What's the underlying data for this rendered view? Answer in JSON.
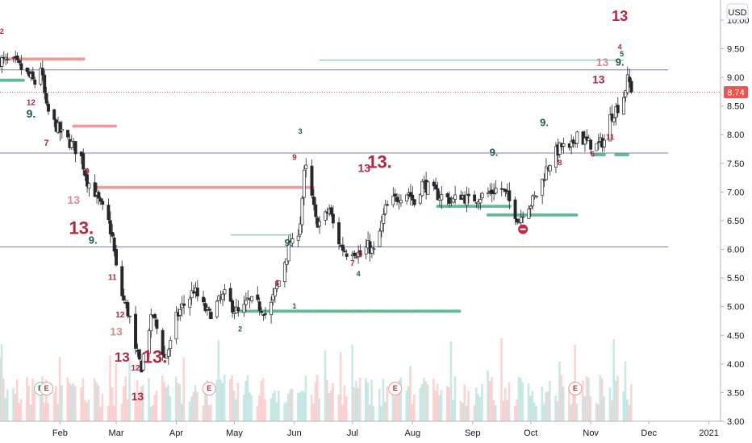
{
  "chart_data": {
    "type": "candlestick",
    "title": "",
    "currency": "USD",
    "last_price": "8.74",
    "ylim": [
      3.0,
      10.35
    ],
    "y_ticks": [
      "10.00",
      "9.50",
      "9.00",
      "8.50",
      "8.00",
      "7.50",
      "7.00",
      "6.50",
      "6.00",
      "5.50",
      "5.00",
      "4.50",
      "4.00",
      "3.50",
      "3.00"
    ],
    "x_ticks": [
      "Feb",
      "Mar",
      "Apr",
      "May",
      "Jun",
      "Jul",
      "Aug",
      "Sep",
      "Oct",
      "Nov",
      "Dec",
      "2021"
    ],
    "x_tick_days": [
      31,
      60,
      91,
      121,
      152,
      182,
      213,
      244,
      274,
      305,
      335,
      366
    ],
    "xlim_days": [
      0,
      372
    ],
    "horizontal_lines": [
      9.13,
      7.68,
      6.04
    ],
    "volume_visible": true,
    "price_path": [
      [
        0,
        9.3
      ],
      [
        8,
        9.25
      ],
      [
        14,
        9.05
      ],
      [
        18,
        8.9
      ],
      [
        21,
        9.2
      ],
      [
        24,
        8.45
      ],
      [
        28,
        8.2
      ],
      [
        31,
        8.05
      ],
      [
        35,
        7.9
      ],
      [
        38,
        7.8
      ],
      [
        42,
        7.6
      ],
      [
        45,
        7.2
      ],
      [
        49,
        7.0
      ],
      [
        52,
        6.75
      ],
      [
        55,
        6.6
      ],
      [
        58,
        6.2
      ],
      [
        61,
        5.4
      ],
      [
        64,
        5.1
      ],
      [
        67,
        4.8
      ],
      [
        70,
        4.2
      ],
      [
        73,
        3.95
      ],
      [
        76,
        4.55
      ],
      [
        79,
        4.85
      ],
      [
        82,
        4.5
      ],
      [
        85,
        4.1
      ],
      [
        88,
        4.35
      ],
      [
        91,
        4.8
      ],
      [
        94,
        5.0
      ],
      [
        97,
        5.1
      ],
      [
        100,
        5.3
      ],
      [
        104,
        5.05
      ],
      [
        108,
        4.85
      ],
      [
        112,
        5.05
      ],
      [
        116,
        5.2
      ],
      [
        120,
        5.0
      ],
      [
        124,
        4.85
      ],
      [
        128,
        5.1
      ],
      [
        132,
        5.05
      ],
      [
        136,
        4.95
      ],
      [
        138,
        4.8
      ],
      [
        141,
        5.15
      ],
      [
        144,
        5.45
      ],
      [
        147,
        5.8
      ],
      [
        150,
        6.15
      ],
      [
        152,
        6.0
      ],
      [
        155,
        6.5
      ],
      [
        157,
        7.3
      ],
      [
        159,
        7.5
      ],
      [
        161,
        6.9
      ],
      [
        163,
        6.5
      ],
      [
        166,
        6.45
      ],
      [
        170,
        6.7
      ],
      [
        173,
        6.3
      ],
      [
        176,
        6.05
      ],
      [
        179,
        5.95
      ],
      [
        182,
        6.0
      ],
      [
        186,
        5.9
      ],
      [
        190,
        6.05
      ],
      [
        193,
        5.95
      ],
      [
        196,
        6.3
      ],
      [
        199,
        6.7
      ],
      [
        203,
        6.85
      ],
      [
        207,
        6.95
      ],
      [
        211,
        7.0
      ],
      [
        214,
        6.8
      ],
      [
        218,
        7.15
      ],
      [
        222,
        7.05
      ],
      [
        226,
        6.95
      ],
      [
        230,
        6.9
      ],
      [
        234,
        6.85
      ],
      [
        238,
        6.95
      ],
      [
        242,
        6.85
      ],
      [
        246,
        6.9
      ],
      [
        250,
        6.95
      ],
      [
        254,
        7.0
      ],
      [
        258,
        7.1
      ],
      [
        262,
        6.9
      ],
      [
        265,
        6.7
      ],
      [
        268,
        6.5
      ],
      [
        271,
        6.75
      ],
      [
        274,
        6.8
      ],
      [
        278,
        7.0
      ],
      [
        282,
        7.4
      ],
      [
        286,
        7.65
      ],
      [
        290,
        7.8
      ],
      [
        294,
        7.7
      ],
      [
        298,
        8.05
      ],
      [
        301,
        7.9
      ],
      [
        304,
        7.85
      ],
      [
        308,
        7.8
      ],
      [
        312,
        7.9
      ],
      [
        315,
        8.3
      ],
      [
        318,
        8.45
      ],
      [
        321,
        8.55
      ],
      [
        324,
        8.95
      ],
      [
        326,
        8.85
      ],
      [
        328,
        8.74
      ]
    ],
    "symbols": [
      {
        "day": 1,
        "price": 9.79,
        "text": "2",
        "size": 9,
        "color": "red"
      },
      {
        "day": 16,
        "price": 8.55,
        "text": "12",
        "size": 10,
        "color": "red"
      },
      {
        "day": 16,
        "price": 8.35,
        "text": "9.",
        "size": 14,
        "color": "green"
      },
      {
        "day": 24,
        "price": 7.85,
        "text": "7",
        "size": 11,
        "color": "red"
      },
      {
        "day": 45,
        "price": 7.35,
        "text": "9",
        "size": 10,
        "color": "red"
      },
      {
        "day": 38,
        "price": 6.85,
        "text": "13",
        "size": 14,
        "color": "pink"
      },
      {
        "day": 42,
        "price": 6.35,
        "text": "13.",
        "size": 22,
        "color": "red"
      },
      {
        "day": 48,
        "price": 6.15,
        "text": "9.",
        "size": 13,
        "color": "green"
      },
      {
        "day": 58,
        "price": 5.5,
        "text": "11",
        "size": 10,
        "color": "red"
      },
      {
        "day": 62,
        "price": 4.85,
        "text": "12",
        "size": 10,
        "color": "red"
      },
      {
        "day": 60,
        "price": 4.55,
        "text": "13",
        "size": 14,
        "color": "pink"
      },
      {
        "day": 63,
        "price": 4.1,
        "text": "13",
        "size": 17,
        "color": "red"
      },
      {
        "day": 80,
        "price": 4.1,
        "text": "13.",
        "size": 22,
        "color": "red"
      },
      {
        "day": 70,
        "price": 3.92,
        "text": "12",
        "size": 10,
        "color": "red"
      },
      {
        "day": 71,
        "price": 3.42,
        "text": "13",
        "size": 14,
        "color": "red"
      },
      {
        "day": 149,
        "price": 6.1,
        "text": "9.",
        "size": 12,
        "color": "green"
      },
      {
        "day": 152,
        "price": 7.6,
        "text": "9",
        "size": 10,
        "color": "red"
      },
      {
        "day": 155,
        "price": 8.05,
        "text": "3",
        "size": 9,
        "color": "green"
      },
      {
        "day": 152,
        "price": 5.0,
        "text": "1",
        "size": 9,
        "color": "green"
      },
      {
        "day": 143,
        "price": 5.4,
        "text": "6",
        "size": 10,
        "color": "red"
      },
      {
        "day": 196,
        "price": 7.5,
        "text": "13.",
        "size": 22,
        "color": "red"
      },
      {
        "day": 188,
        "price": 7.4,
        "text": "13",
        "size": 14,
        "color": "red"
      },
      {
        "day": 186,
        "price": 5.9,
        "text": "9",
        "size": 10,
        "color": "red"
      },
      {
        "day": 182,
        "price": 5.75,
        "text": "7",
        "size": 10,
        "color": "red"
      },
      {
        "day": 185,
        "price": 5.56,
        "text": "4",
        "size": 9,
        "color": "green"
      },
      {
        "day": 124,
        "price": 4.6,
        "text": "2",
        "size": 9,
        "color": "green"
      },
      {
        "day": 255,
        "price": 7.68,
        "text": "9.",
        "size": 13,
        "color": "green"
      },
      {
        "day": 281,
        "price": 8.2,
        "text": "9.",
        "size": 13,
        "color": "green"
      },
      {
        "day": 309,
        "price": 8.95,
        "text": "13",
        "size": 14,
        "color": "red"
      },
      {
        "day": 311,
        "price": 9.25,
        "text": "13",
        "size": 14,
        "color": "pink"
      },
      {
        "day": 320,
        "price": 9.25,
        "text": "9.",
        "size": 13,
        "color": "green"
      },
      {
        "day": 320,
        "price": 10.05,
        "text": "13",
        "size": 18,
        "color": "red"
      },
      {
        "day": 320,
        "price": 9.52,
        "text": "4",
        "size": 9,
        "color": "red"
      },
      {
        "day": 321,
        "price": 9.4,
        "text": "5",
        "size": 9,
        "color": "green"
      },
      {
        "day": 315,
        "price": 7.95,
        "text": "11",
        "size": 10,
        "color": "red"
      },
      {
        "day": 306,
        "price": 7.65,
        "text": "5",
        "size": 9,
        "color": "red"
      },
      {
        "day": 289,
        "price": 7.5,
        "text": "8",
        "size": 10,
        "color": "red"
      },
      {
        "day": 21,
        "price": 3.57,
        "text": "D",
        "size": 9,
        "color": "green"
      },
      {
        "day": 24,
        "price": 3.57,
        "text": "E",
        "size": 9,
        "color": "red"
      },
      {
        "day": 108,
        "price": 3.57,
        "text": "E",
        "size": 9,
        "color": "red"
      },
      {
        "day": 204,
        "price": 3.57,
        "text": "E",
        "size": 9,
        "color": "red"
      },
      {
        "day": 297,
        "price": 3.57,
        "text": "E",
        "size": 9,
        "color": "red"
      }
    ],
    "colors": {
      "up": "#26a69a",
      "down": "#ef5350",
      "sequential_red": "#b2283f",
      "sequential_green": "#1a5c4a",
      "support_dots": "#4fb38a",
      "resistance_dots": "#ec8f8f",
      "horizontal_line": "#7e7bb0",
      "last_price_badge": "#ef5350"
    }
  }
}
